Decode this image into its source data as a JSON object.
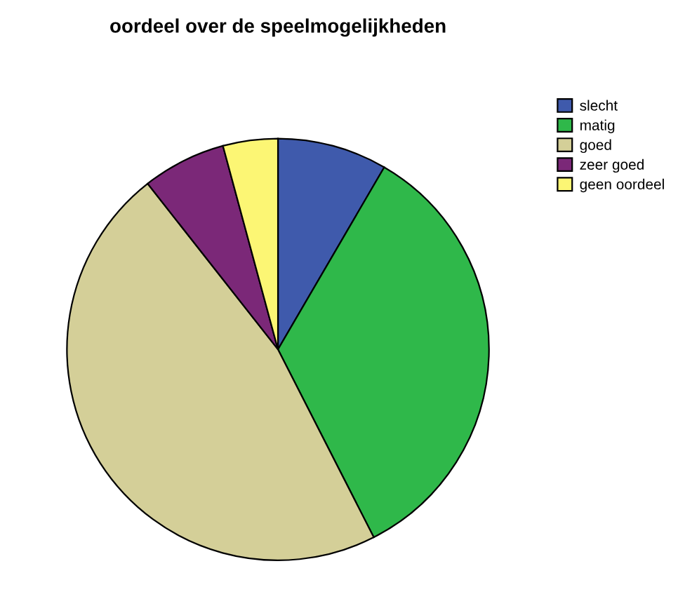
{
  "chart_data": {
    "type": "pie",
    "title": "oordeel over de speelmogelijkheden",
    "categories": [
      "slecht",
      "matig",
      "goed",
      "zeer goed",
      "geen oordeel"
    ],
    "values": [
      8.4,
      34.1,
      46.9,
      6.4,
      4.2
    ],
    "colors": [
      "#3f5aac",
      "#2fb84a",
      "#d4cf98",
      "#7b2878",
      "#fcf674"
    ],
    "legend": "top right"
  }
}
